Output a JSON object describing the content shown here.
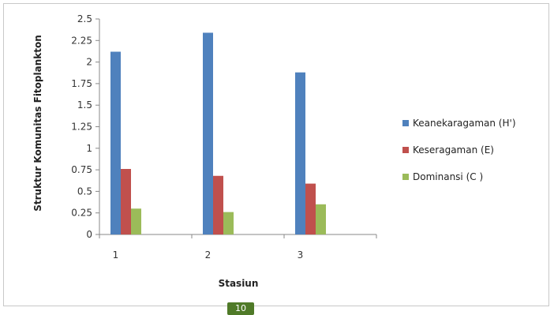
{
  "chart_data": {
    "type": "bar",
    "title": "",
    "xlabel": "Stasiun",
    "ylabel": "Struktur Komunitas Fitoplankton",
    "categories": [
      "1",
      "2",
      "3"
    ],
    "ylim": [
      0,
      2.5
    ],
    "yticks": [
      "0",
      "0.25",
      "0.5",
      "0.75",
      "1",
      "1.25",
      "1.5",
      "1.75",
      "2",
      "2.25",
      "2.5"
    ],
    "grid": false,
    "legend_position": "right",
    "series": [
      {
        "name": "Keanekaragaman (H')",
        "color": "#4f81bd",
        "values": [
          2.12,
          2.34,
          1.88
        ]
      },
      {
        "name": "Keseragaman (E)",
        "color": "#c0504d",
        "values": [
          0.76,
          0.68,
          0.59
        ]
      },
      {
        "name": "Dominansi (C )",
        "color": "#9bbb59",
        "values": [
          0.3,
          0.26,
          0.35
        ]
      }
    ]
  },
  "page_number": "10"
}
